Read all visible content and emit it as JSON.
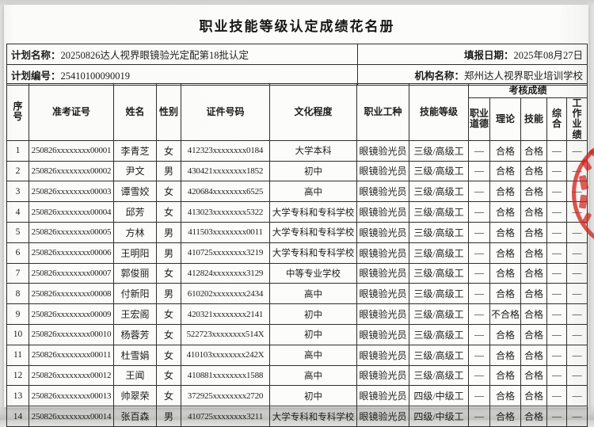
{
  "title": "职业技能等级认定成绩花名册",
  "meta": {
    "plan_name_label": "计划名称：",
    "plan_name_value": "20250826达人视界眼镜验光定配第18批认定",
    "report_date_label": "填报日期：",
    "report_date_value": "2025年08月27日",
    "plan_code_label": "计划编号：",
    "plan_code_value": "25410100090019",
    "org_label": "机构名称：",
    "org_value": "郑州达人视界职业培训学校"
  },
  "table": {
    "headers": {
      "seq": "序\n号",
      "exam_no": "准考证号",
      "name": "姓名",
      "gender": "性别",
      "id_no": "证件号码",
      "education": "文化程度",
      "occupation": "职业工种",
      "level": "技能等级",
      "score_group": "考核成绩",
      "ethics": "职业\n道德",
      "theory": "理论",
      "skill": "技能",
      "comprehensive": "综合",
      "work": "工作\n业绩"
    },
    "rows": [
      [
        "1",
        "250826xxxxxxxx00001",
        "李青芝",
        "女",
        "412323xxxxxxxx0184",
        "大学本科",
        "眼镜验光员",
        "三级/高级工",
        "—",
        "合格",
        "合格",
        "—",
        "—"
      ],
      [
        "2",
        "250826xxxxxxxx00002",
        "尹文",
        "男",
        "430421xxxxxxxx1852",
        "初中",
        "眼镜验光员",
        "三级/高级工",
        "—",
        "合格",
        "合格",
        "—",
        "—"
      ],
      [
        "3",
        "250826xxxxxxxx00003",
        "谭雪姣",
        "女",
        "420684xxxxxxxx6525",
        "高中",
        "眼镜验光员",
        "三级/高级工",
        "—",
        "合格",
        "合格",
        "—",
        "—"
      ],
      [
        "4",
        "250826xxxxxxxx00004",
        "邱芳",
        "女",
        "413023xxxxxxxx5322",
        "大学专科和专科学校",
        "眼镜验光员",
        "三级/高级工",
        "—",
        "合格",
        "合格",
        "—",
        "—"
      ],
      [
        "5",
        "250826xxxxxxxx00005",
        "方林",
        "男",
        "411503xxxxxxxx0011",
        "大学专科和专科学校",
        "眼镜验光员",
        "三级/高级工",
        "—",
        "合格",
        "合格",
        "—",
        "—"
      ],
      [
        "6",
        "250826xxxxxxxx00006",
        "王明阳",
        "男",
        "410725xxxxxxxx3219",
        "大学专科和专科学校",
        "眼镜验光员",
        "三级/高级工",
        "—",
        "合格",
        "合格",
        "—",
        "—"
      ],
      [
        "7",
        "250826xxxxxxxx00007",
        "郭俊丽",
        "女",
        "412824xxxxxxxx3129",
        "中等专业学校",
        "眼镜验光员",
        "三级/高级工",
        "—",
        "合格",
        "合格",
        "—",
        "—"
      ],
      [
        "8",
        "250826xxxxxxxx00008",
        "付新阳",
        "男",
        "610202xxxxxxxx2434",
        "高中",
        "眼镜验光员",
        "三级/高级工",
        "—",
        "合格",
        "合格",
        "—",
        "—"
      ],
      [
        "9",
        "250826xxxxxxxx00009",
        "王宏阁",
        "女",
        "420321xxxxxxxx2141",
        "初中",
        "眼镜验光员",
        "三级/高级工",
        "—",
        "不合格",
        "合格",
        "—",
        "—"
      ],
      [
        "10",
        "250826xxxxxxxx00010",
        "杨蓉芳",
        "女",
        "522723xxxxxxxx514X",
        "初中",
        "眼镜验光员",
        "三级/高级工",
        "—",
        "合格",
        "合格",
        "—",
        "—"
      ],
      [
        "11",
        "250826xxxxxxxx00011",
        "杜雪娟",
        "女",
        "410103xxxxxxxx242X",
        "高中",
        "眼镜验光员",
        "三级/高级工",
        "—",
        "合格",
        "合格",
        "—",
        "—"
      ],
      [
        "12",
        "250826xxxxxxxx00012",
        "王闻",
        "女",
        "410881xxxxxxxx1588",
        "高中",
        "眼镜验光员",
        "三级/高级工",
        "—",
        "合格",
        "合格",
        "—",
        "—"
      ],
      [
        "13",
        "250826xxxxxxxx00013",
        "帅翠荣",
        "女",
        "372925xxxxxxxx2720",
        "初中",
        "眼镜验光员",
        "四级/中级工",
        "—",
        "合格",
        "合格",
        "—",
        "—"
      ],
      [
        "14",
        "250826xxxxxxxx00014",
        "张百森",
        "男",
        "410725xxxxxxxx3211",
        "大学专科和专科学校",
        "眼镜验光员",
        "四级/中级工",
        "—",
        "合格",
        "合格",
        "—",
        "—"
      ]
    ]
  },
  "seal": {
    "color": "#ce2620"
  }
}
